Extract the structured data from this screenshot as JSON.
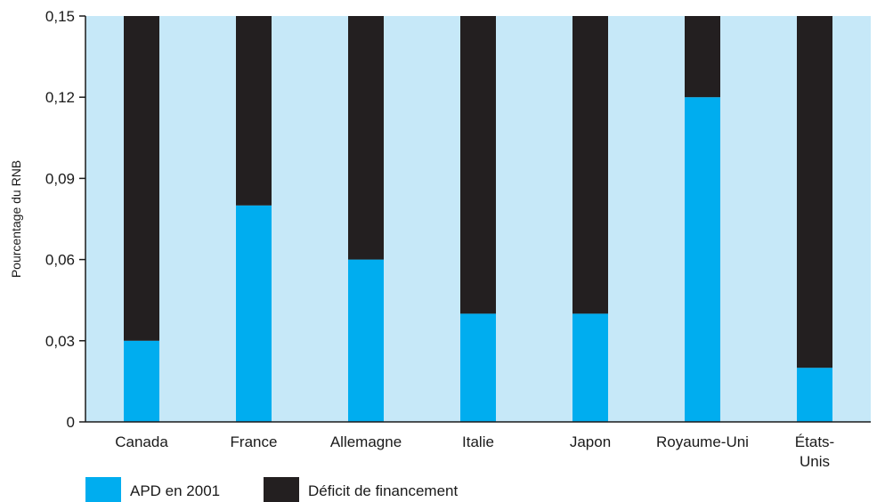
{
  "chart_data": {
    "type": "bar",
    "stacked": true,
    "title": "",
    "xlabel": "",
    "ylabel": "Pourcentage du RNB",
    "ylim": [
      0,
      0.15
    ],
    "yticks": [
      0,
      0.03,
      0.06,
      0.09,
      0.12,
      0.15
    ],
    "ytick_labels": [
      "0",
      "0,03",
      "0,06",
      "0,09",
      "0,12",
      "0,15"
    ],
    "grid": false,
    "legend_position": "bottom-left",
    "categories": [
      [
        "Canada"
      ],
      [
        "France"
      ],
      [
        "Allemagne"
      ],
      [
        "Italie"
      ],
      [
        "Japon"
      ],
      [
        "Royaume-Uni"
      ],
      [
        "États-",
        "Unis"
      ]
    ],
    "series": [
      {
        "name": "APD en 2001",
        "color": "#00adef",
        "values": [
          0.03,
          0.08,
          0.06,
          0.04,
          0.04,
          0.12,
          0.02
        ]
      },
      {
        "name": "Déficit de financement",
        "color": "#231f20",
        "values": [
          0.12,
          0.07,
          0.09,
          0.11,
          0.11,
          0.03,
          0.13
        ]
      }
    ],
    "plot_background": "#c6e8f8"
  }
}
